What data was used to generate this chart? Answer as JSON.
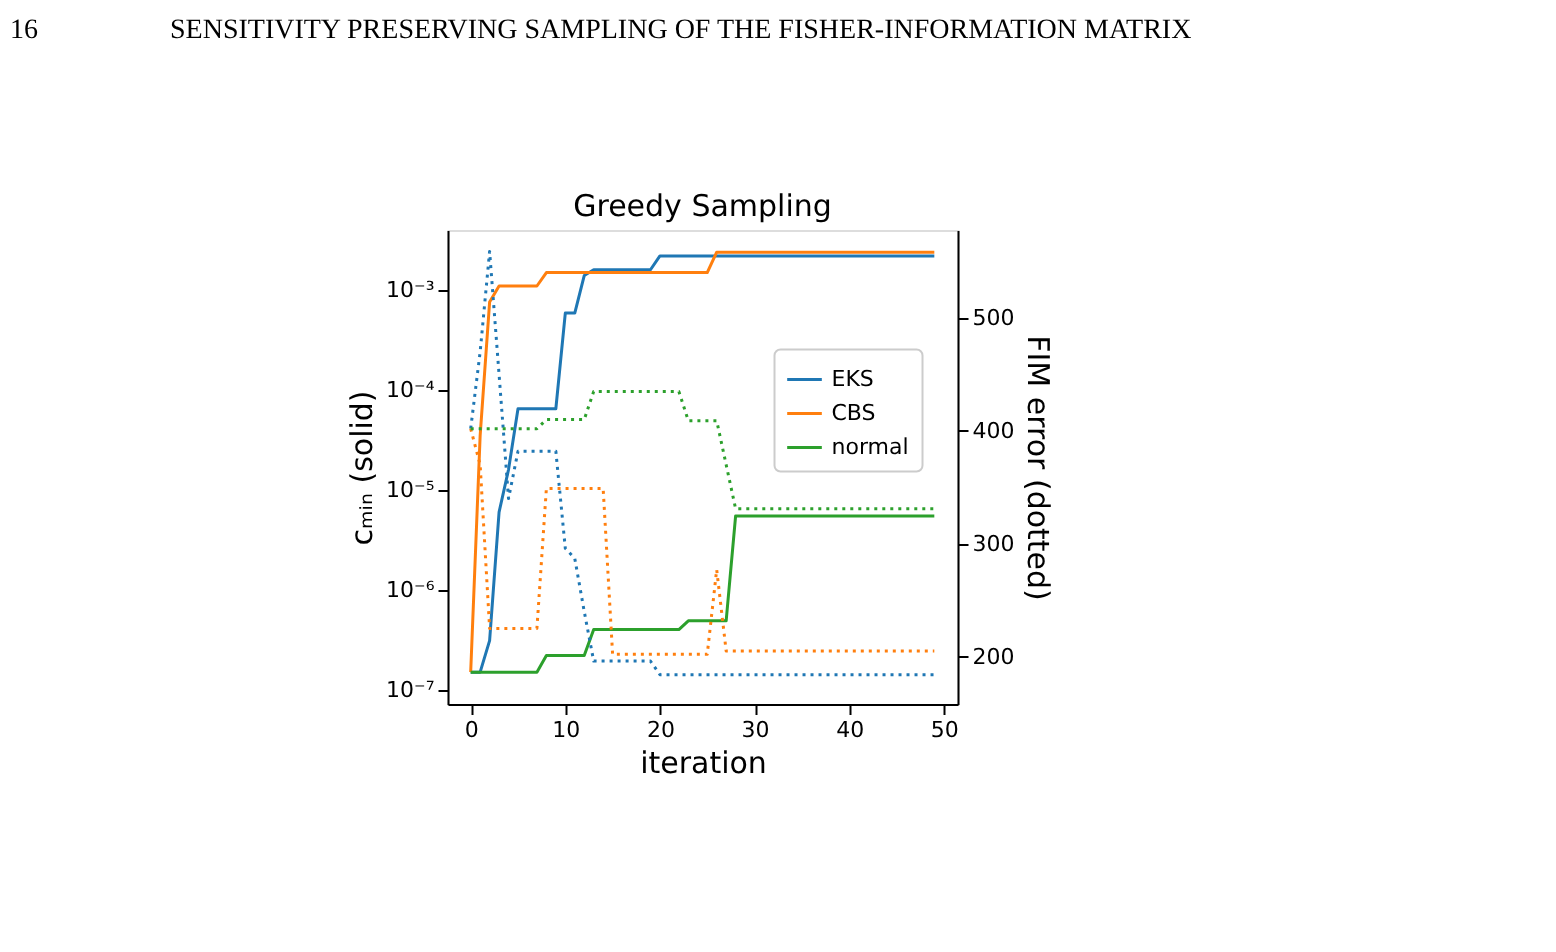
{
  "chart_data": {
    "type": "line",
    "title": "Greedy Sampling",
    "xlabel": "iteration",
    "ylabel": "cₘᵢₙ (solid)",
    "y2label": "FIM error (dotted)",
    "annotations": [
      "16",
      "SENSITIVITY PRESERVING SAMPLING OF THE FISHER-INFORMATION MATRIX"
    ],
    "x": [
      0,
      1,
      2,
      3,
      4,
      5,
      6,
      7,
      8,
      9,
      10,
      11,
      12,
      13,
      14,
      15,
      16,
      17,
      18,
      19,
      20,
      21,
      22,
      23,
      24,
      25,
      26,
      27,
      28,
      29,
      30,
      31,
      32,
      33,
      34,
      35,
      36,
      37,
      38,
      39,
      40,
      41,
      42,
      43,
      44,
      45,
      46,
      47,
      48,
      49
    ],
    "series": [
      {
        "name": "EKS",
        "color": "#1f77b4",
        "line_style": "solid",
        "values": [
          1.5e-07,
          1.5e-07,
          3.1e-07,
          6e-06,
          1.6e-05,
          6.5e-05,
          6.5e-05,
          6.5e-05,
          6.5e-05,
          6.5e-05,
          0.00059,
          0.00059,
          0.0014,
          0.0016,
          0.0016,
          0.0016,
          0.0016,
          0.0016,
          0.0016,
          0.0016,
          0.0022,
          0.0022,
          0.0022,
          0.0022,
          0.0022,
          0.0022,
          0.0022,
          0.0022,
          0.0022,
          0.0022,
          0.0022,
          0.0022,
          0.0022,
          0.0022,
          0.0022,
          0.0022,
          0.0022,
          0.0022,
          0.0022,
          0.0022,
          0.0022,
          0.0022,
          0.0022,
          0.0022,
          0.0022,
          0.0022,
          0.0022,
          0.0022,
          0.0022,
          0.0022
        ]
      },
      {
        "name": "CBS",
        "color": "#ff7f0e",
        "line_style": "solid",
        "values": [
          1.5e-07,
          3.5e-05,
          0.00076,
          0.0011,
          0.0011,
          0.0011,
          0.0011,
          0.0011,
          0.0015,
          0.0015,
          0.0015,
          0.0015,
          0.0015,
          0.0015,
          0.0015,
          0.0015,
          0.0015,
          0.0015,
          0.0015,
          0.0015,
          0.0015,
          0.0015,
          0.0015,
          0.0015,
          0.0015,
          0.0015,
          0.0024,
          0.0024,
          0.0024,
          0.0024,
          0.0024,
          0.0024,
          0.0024,
          0.0024,
          0.0024,
          0.0024,
          0.0024,
          0.0024,
          0.0024,
          0.0024,
          0.0024,
          0.0024,
          0.0024,
          0.0024,
          0.0024,
          0.0024,
          0.0024,
          0.0024,
          0.0024,
          0.0024
        ]
      },
      {
        "name": "normal",
        "color": "#2ca02c",
        "line_style": "solid",
        "values": [
          1.5e-07,
          1.5e-07,
          1.5e-07,
          1.5e-07,
          1.5e-07,
          1.5e-07,
          1.5e-07,
          1.5e-07,
          2.2e-07,
          2.2e-07,
          2.2e-07,
          2.2e-07,
          2.2e-07,
          4e-07,
          4e-07,
          4e-07,
          4e-07,
          4e-07,
          4e-07,
          4e-07,
          4e-07,
          4e-07,
          4e-07,
          4.9e-07,
          4.9e-07,
          4.9e-07,
          4.9e-07,
          4.9e-07,
          5.5e-06,
          5.5e-06,
          5.5e-06,
          5.5e-06,
          5.5e-06,
          5.5e-06,
          5.5e-06,
          5.5e-06,
          5.5e-06,
          5.5e-06,
          5.5e-06,
          5.5e-06,
          5.5e-06,
          5.5e-06,
          5.5e-06,
          5.5e-06,
          5.5e-06,
          5.5e-06,
          5.5e-06,
          5.5e-06,
          5.5e-06,
          5.5e-06
        ]
      },
      {
        "color": "#1f77b4",
        "axis": "y2",
        "line_style": "dotted",
        "values": [
          402,
          470,
          559,
          450,
          340,
          382,
          382,
          382,
          382,
          382,
          296,
          287,
          240,
          196,
          196,
          196,
          196,
          196,
          196,
          196,
          184,
          184,
          184,
          184,
          184,
          184,
          184,
          184,
          184,
          184,
          184,
          184,
          184,
          184,
          184,
          184,
          184,
          184,
          184,
          184,
          184,
          184,
          184,
          184,
          184,
          184,
          184,
          184,
          184,
          184
        ]
      },
      {
        "color": "#ff7f0e",
        "axis": "y2",
        "line_style": "dotted",
        "values": [
          402,
          370,
          225,
          225,
          225,
          225,
          225,
          225,
          349,
          349,
          349,
          349,
          349,
          349,
          349,
          202,
          202,
          202,
          202,
          202,
          202,
          202,
          202,
          202,
          202,
          202,
          277,
          205,
          205,
          205,
          205,
          205,
          205,
          205,
          205,
          205,
          205,
          205,
          205,
          205,
          205,
          205,
          205,
          205,
          205,
          205,
          205,
          205,
          205,
          205
        ]
      },
      {
        "color": "#2ca02c",
        "axis": "y2",
        "line_style": "dotted",
        "values": [
          402,
          402,
          402,
          402,
          402,
          402,
          402,
          402,
          410,
          410,
          410,
          410,
          410,
          435,
          435,
          435,
          435,
          435,
          435,
          435,
          435,
          435,
          435,
          409,
          409,
          409,
          409,
          370,
          331,
          331,
          331,
          331,
          331,
          331,
          331,
          331,
          331,
          331,
          331,
          331,
          331,
          331,
          331,
          331,
          331,
          331,
          331,
          331,
          331,
          331
        ]
      }
    ],
    "log": "y",
    "grid": false,
    "legend": "right",
    "marker": "none",
    "xlim": [
      -2.45,
      51.45
    ],
    "xticks": [
      0,
      10,
      20,
      30,
      40,
      50
    ],
    "ylim": [
      7.2e-08,
      0.004
    ],
    "yticks": [
      {
        "value": 1e-07,
        "label": "10⁻⁷"
      },
      {
        "value": 1e-06,
        "label": "10⁻⁶"
      },
      {
        "value": 1e-05,
        "label": "10⁻⁵"
      },
      {
        "value": 0.0001,
        "label": "10⁻⁴"
      },
      {
        "value": 0.001,
        "label": "10⁻³"
      }
    ],
    "y2lim": [
      158,
      578
    ],
    "y2ticks": [
      200,
      300,
      400,
      500
    ]
  }
}
